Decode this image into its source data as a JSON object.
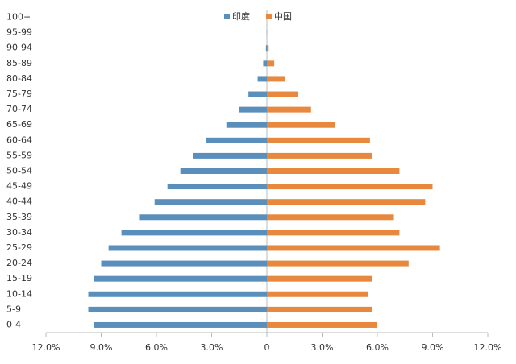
{
  "chart_data": {
    "type": "pyramid",
    "categories": [
      "0-4",
      "5-9",
      "10-14",
      "15-19",
      "20-24",
      "25-29",
      "30-34",
      "35-39",
      "40-44",
      "45-49",
      "50-54",
      "55-59",
      "60-64",
      "65-69",
      "70-74",
      "75-79",
      "80-84",
      "85-89",
      "90-94",
      "95-99",
      "100+"
    ],
    "series": [
      {
        "name": "印度",
        "color": "#5b8fbb",
        "values": [
          -9.4,
          -9.7,
          -9.7,
          -9.4,
          -9.0,
          -8.6,
          -7.9,
          -6.9,
          -6.1,
          -5.4,
          -4.7,
          -4.0,
          -3.3,
          -2.2,
          -1.5,
          -1.0,
          -0.5,
          -0.2,
          -0.05,
          -0.01,
          0
        ]
      },
      {
        "name": "中国",
        "color": "#e8883e",
        "values": [
          6.0,
          5.7,
          5.5,
          5.7,
          7.7,
          9.4,
          7.2,
          6.9,
          8.6,
          9.0,
          7.2,
          5.7,
          5.6,
          3.7,
          2.4,
          1.7,
          1.0,
          0.4,
          0.1,
          0.01,
          0
        ]
      }
    ],
    "xlim": [
      -12,
      12
    ],
    "xticks": [
      {
        "value": -12,
        "label": "12.0%"
      },
      {
        "value": -9,
        "label": "9.0%"
      },
      {
        "value": -6,
        "label": "6.0%"
      },
      {
        "value": -3,
        "label": "3.0%"
      },
      0,
      {
        "value": 3,
        "label": "3.0%"
      },
      {
        "value": 6,
        "label": "6.0%"
      },
      {
        "value": 9,
        "label": "9.0%"
      },
      {
        "value": 12,
        "label": "12.0%"
      }
    ]
  }
}
